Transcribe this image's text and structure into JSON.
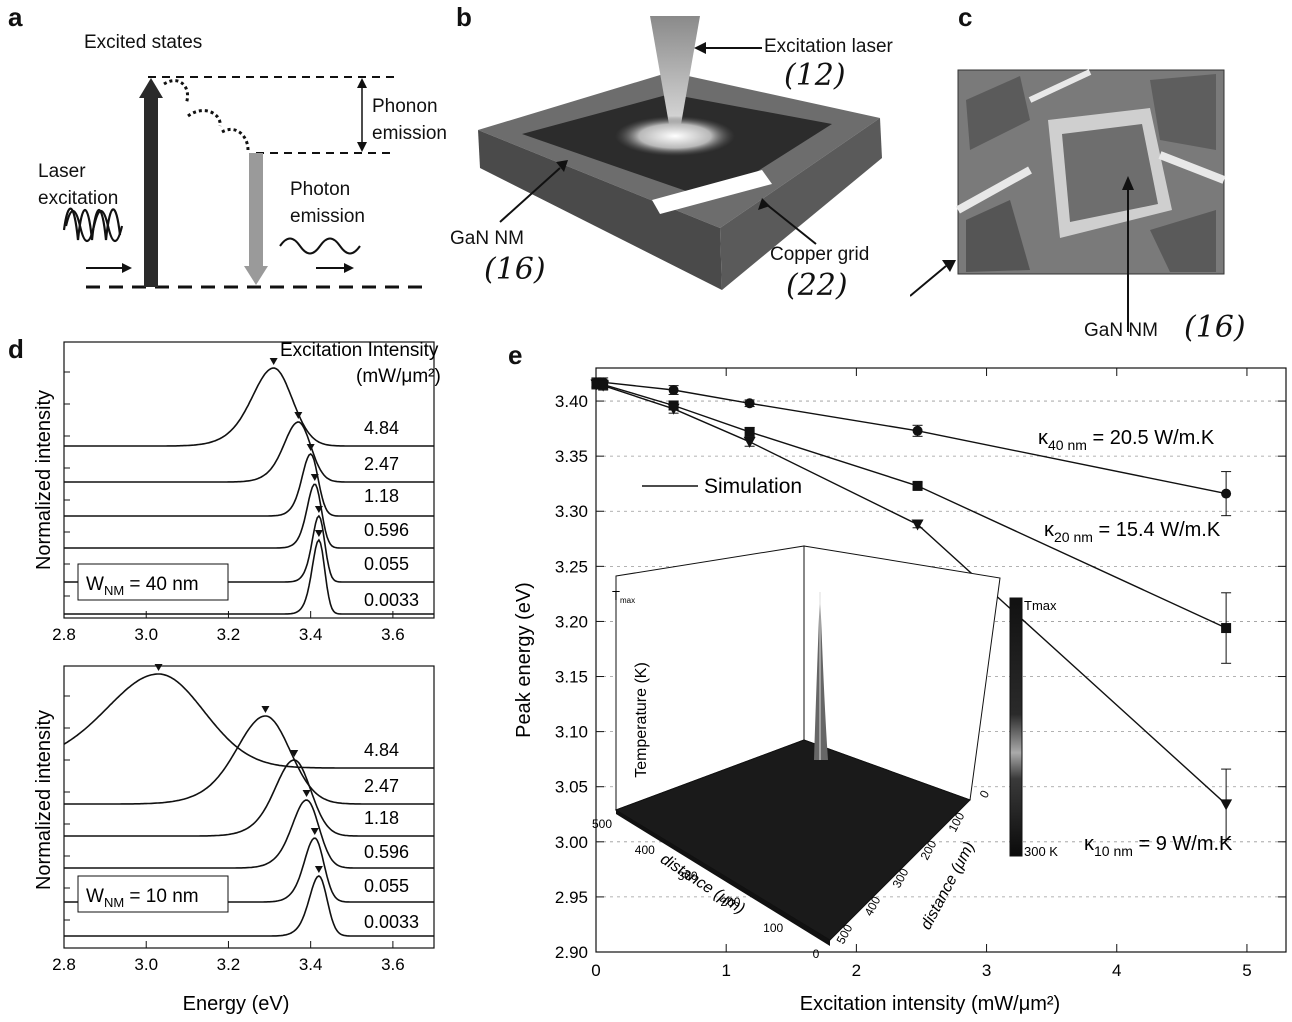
{
  "panel_letters": [
    "a",
    "b",
    "c",
    "d",
    "e"
  ],
  "panel_a": {
    "excited_states": "Excited states",
    "phonon_emission": [
      "Phonon",
      "emission"
    ],
    "laser_excitation": [
      "Laser",
      "excitation"
    ],
    "photon_emission": [
      "Photon",
      "emission"
    ]
  },
  "panel_b": {
    "excitation_laser": "Excitation laser",
    "laser_ref": "(12)",
    "gan_nm": "GaN NM",
    "gan_ref": "(16)",
    "copper_grid": "Copper grid",
    "copper_ref": "(22)"
  },
  "panel_c": {
    "gan_nm": "GaN NM",
    "gan_ref": "(16)"
  },
  "panel_d": {
    "legend_title": "Excitation Intensity",
    "legend_unit": "(mW/μm²)",
    "intensities": [
      "4.84",
      "2.47",
      "1.18",
      "0.596",
      "0.055",
      "0.0033"
    ],
    "ylabel": "Normalized intensity",
    "xlabel": "Energy (eV)",
    "top_box": "W",
    "top_box_sub": "NM",
    "top_box_val": " = 40 nm",
    "bottom_box_sub": "NM",
    "bottom_box_val": " = 10 nm",
    "xticks": [
      "2.8",
      "3.0",
      "3.2",
      "3.4",
      "3.6"
    ]
  },
  "chart_data": [
    {
      "type": "line",
      "title": "",
      "xlabel": "Energy (eV)",
      "ylabel": "Normalized intensity",
      "xlim": [
        2.8,
        3.7
      ],
      "series": [
        {
          "name": "4.84",
          "peak_eV": 3.31
        },
        {
          "name": "2.47",
          "peak_eV": 3.37
        },
        {
          "name": "1.18",
          "peak_eV": 3.4
        },
        {
          "name": "0.596",
          "peak_eV": 3.41
        },
        {
          "name": "0.055",
          "peak_eV": 3.42
        },
        {
          "name": "0.0033",
          "peak_eV": 3.42
        }
      ],
      "annotation": "W_NM = 40 nm"
    },
    {
      "type": "line",
      "title": "",
      "xlabel": "Energy (eV)",
      "ylabel": "Normalized intensity",
      "xlim": [
        2.8,
        3.7
      ],
      "series": [
        {
          "name": "4.84",
          "peak_eV": 3.03
        },
        {
          "name": "2.47",
          "peak_eV": 3.29
        },
        {
          "name": "1.18",
          "peak_eV": 3.36
        },
        {
          "name": "0.596",
          "peak_eV": 3.39
        },
        {
          "name": "0.055",
          "peak_eV": 3.41
        },
        {
          "name": "0.0033",
          "peak_eV": 3.42
        }
      ],
      "annotation": "W_NM = 10 nm"
    },
    {
      "type": "scatter",
      "title": "",
      "xlabel": "Excitation intensity (mW/μm²)",
      "ylabel": "Peak energy (eV)",
      "xlim": [
        0,
        5.3
      ],
      "ylim": [
        2.9,
        3.43
      ],
      "xticks": [
        0,
        1,
        2,
        3,
        4,
        5
      ],
      "yticks": [
        2.9,
        2.95,
        3.0,
        3.05,
        3.1,
        3.15,
        3.2,
        3.25,
        3.3,
        3.35,
        3.4
      ],
      "grid": "horizontal dashed",
      "series": [
        {
          "name": "κ40 nm = 20.5 W/m.K",
          "marker": "circle",
          "x": [
            0.0033,
            0.055,
            0.596,
            1.18,
            2.47,
            4.84
          ],
          "y": [
            3.417,
            3.417,
            3.41,
            3.398,
            3.373,
            3.316
          ],
          "err": [
            0.004,
            0.004,
            0.004,
            0.003,
            0.005,
            0.02
          ]
        },
        {
          "name": "κ20 nm = 15.4 W/m.K",
          "marker": "square",
          "x": [
            0.0033,
            0.055,
            0.596,
            1.18,
            2.47,
            4.84
          ],
          "y": [
            3.416,
            3.415,
            3.396,
            3.372,
            3.323,
            3.194
          ],
          "err": [
            0.004,
            0.004,
            0.004,
            0.004,
            0.003,
            0.032
          ]
        },
        {
          "name": "κ10 nm = 9 W/m.K",
          "marker": "triangle",
          "x": [
            0.0033,
            0.055,
            0.596,
            1.18,
            2.47,
            4.84
          ],
          "y": [
            3.415,
            3.414,
            3.393,
            3.363,
            3.288,
            3.034
          ],
          "err": [
            0.004,
            0.004,
            0.004,
            0.004,
            0.003,
            0.032
          ]
        }
      ],
      "legend": "Simulation"
    }
  ],
  "panel_e": {
    "legend": "Simulation",
    "kappa40": "κ",
    "kappa40_sub": "40 nm",
    "kappa40_val": " = 20.5 W/m.K",
    "kappa20_sub": "20 nm",
    "kappa20_val": " = 15.4 W/m.K",
    "kappa10_sub": "10 nm",
    "kappa10_val": " = 9 W/m.K",
    "ylabel": "Peak energy (eV)",
    "xlabel": "Excitation intensity (mW/μm²)",
    "inset": {
      "tmax_axis": "T",
      "tmax_sub": "max",
      "z_label": "Temperature (K)",
      "x_label": "distance (μm)",
      "y_label": "distance (μm)",
      "colorbar_top": "Tmax",
      "colorbar_bottom": "300 K",
      "x_ticks": [
        "500",
        "400",
        "300",
        "200",
        "100",
        "0"
      ],
      "y_ticks": [
        "0",
        "100",
        "200",
        "300",
        "400",
        "500"
      ]
    }
  }
}
